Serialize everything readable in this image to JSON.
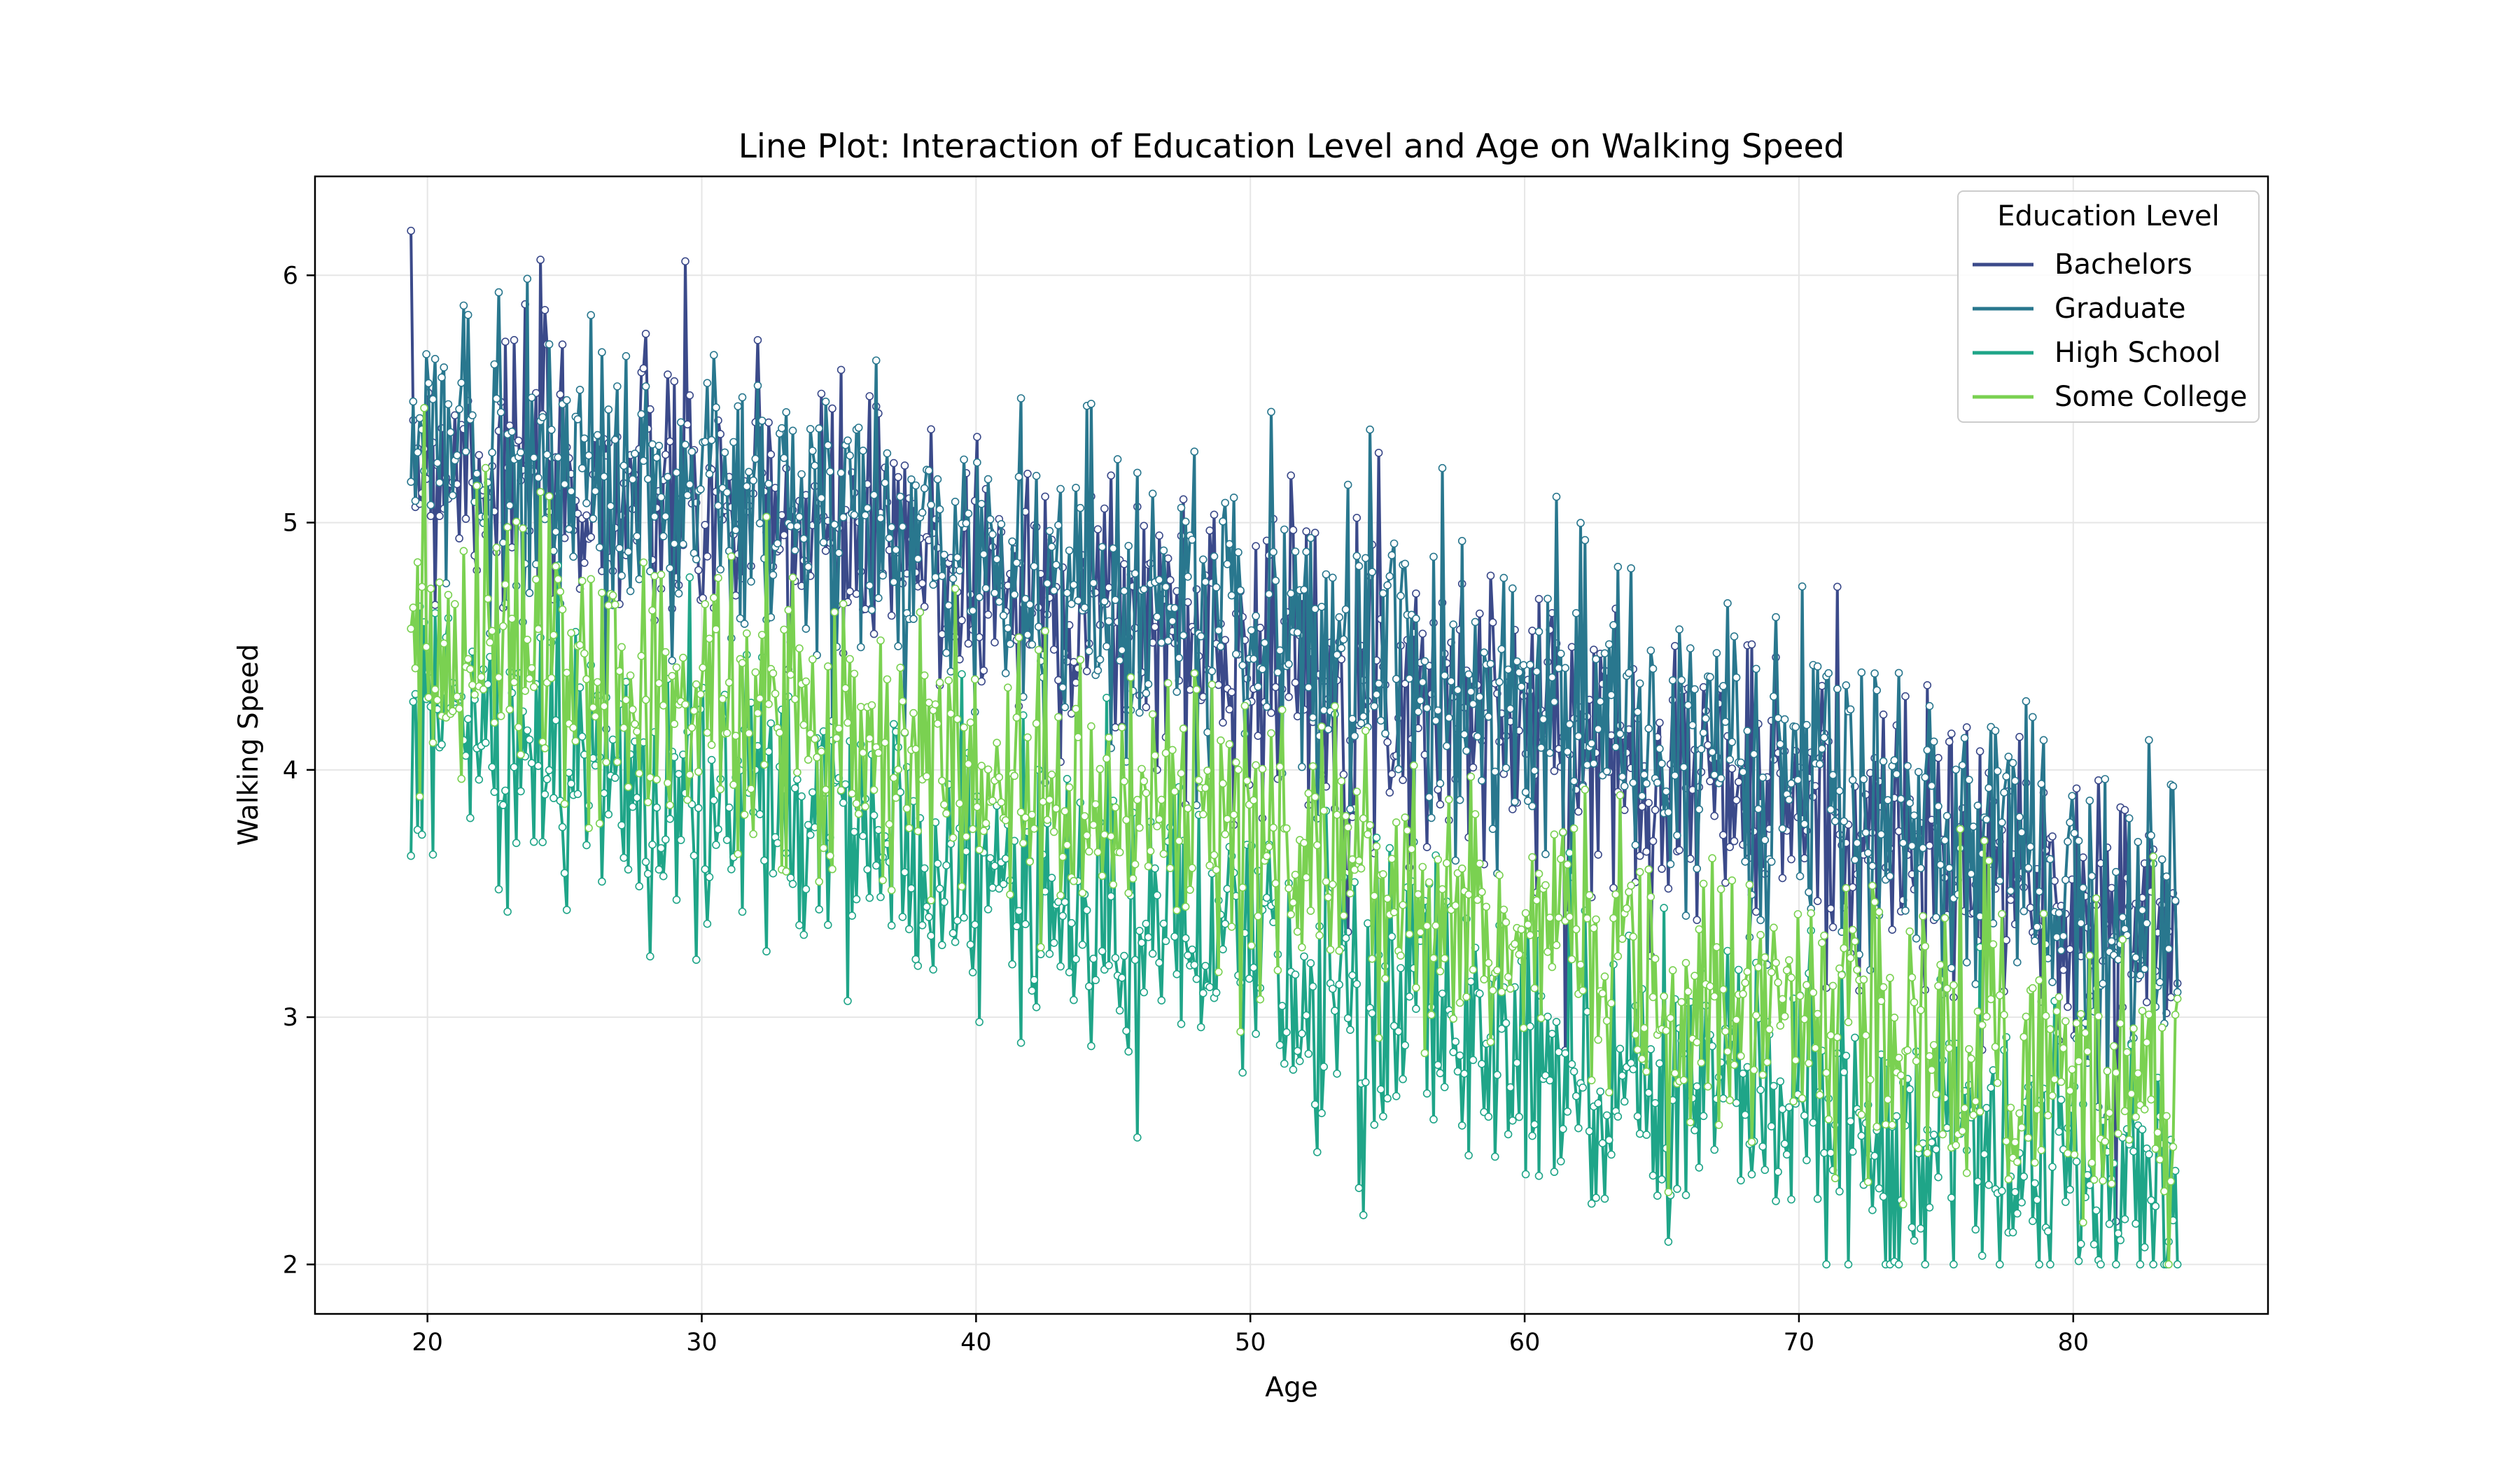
{
  "chart_data": {
    "type": "line",
    "title": "Line Plot: Interaction of Education Level and Age on Walking Speed",
    "xlabel": "Age",
    "ylabel": "Walking Speed",
    "xlim": [
      15.9,
      87.1
    ],
    "ylim": [
      1.8,
      6.4
    ],
    "xticks": [
      20,
      30,
      40,
      50,
      60,
      70,
      80
    ],
    "yticks": [
      2,
      3,
      4,
      5,
      6
    ],
    "grid": true,
    "legend": {
      "title": "Education Level",
      "placement": "top-right"
    },
    "markers": "circle, white fill",
    "series": [
      {
        "name": "Bachelors",
        "color": "#3b4a8a",
        "trend": [
          [
            19.4,
            5.3
          ],
          [
            30,
            5.05
          ],
          [
            40,
            4.8
          ],
          [
            50,
            4.5
          ],
          [
            60,
            4.2
          ],
          [
            70,
            3.85
          ],
          [
            83.8,
            3.3
          ]
        ],
        "noise": 0.3
      },
      {
        "name": "Graduate",
        "color": "#29778e",
        "trend": [
          [
            19.4,
            5.35
          ],
          [
            30,
            5.1
          ],
          [
            40,
            4.85
          ],
          [
            50,
            4.6
          ],
          [
            60,
            4.3
          ],
          [
            70,
            3.95
          ],
          [
            83.8,
            3.35
          ]
        ],
        "noise": 0.32
      },
      {
        "name": "High School",
        "color": "#1fa588",
        "trend": [
          [
            19.4,
            4.2
          ],
          [
            30,
            3.9
          ],
          [
            40,
            3.55
          ],
          [
            50,
            3.2
          ],
          [
            60,
            2.9
          ],
          [
            70,
            2.6
          ],
          [
            83.8,
            2.25
          ]
        ],
        "noise": 0.3
      },
      {
        "name": "Some College",
        "color": "#7ad151",
        "trend": [
          [
            19.4,
            4.6
          ],
          [
            30,
            4.3
          ],
          [
            40,
            4.0
          ],
          [
            50,
            3.7
          ],
          [
            60,
            3.35
          ],
          [
            70,
            3.05
          ],
          [
            83.8,
            2.75
          ]
        ],
        "noise": 0.3
      }
    ]
  }
}
